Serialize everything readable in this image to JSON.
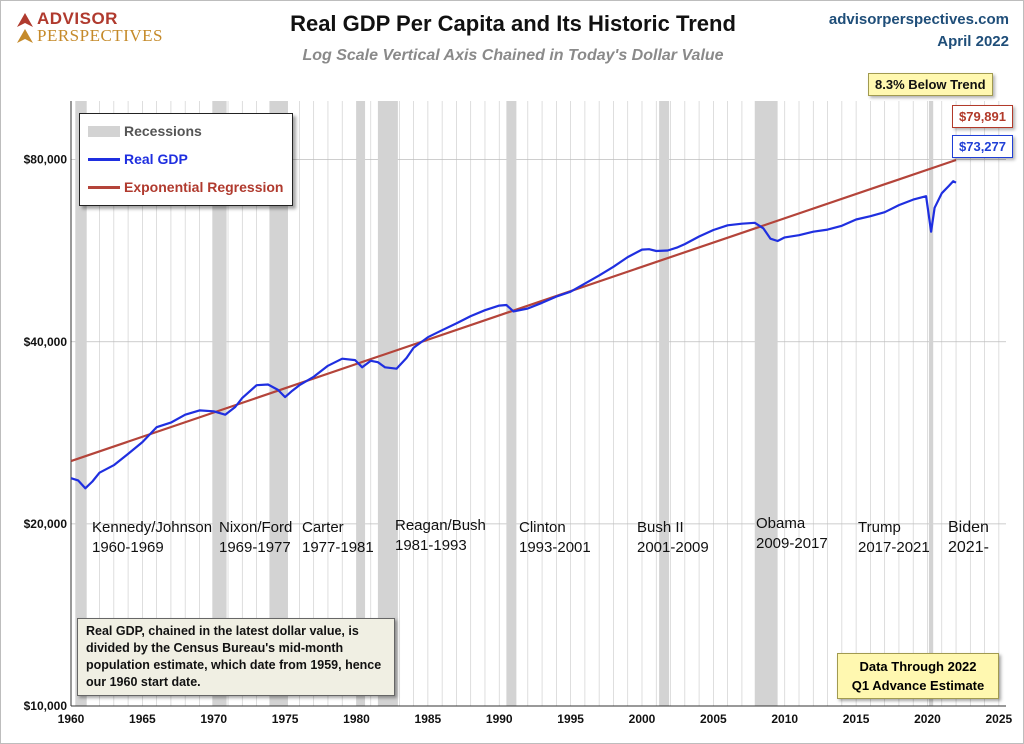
{
  "header": {
    "logo_line1": "ADVISOR",
    "logo_line2": "PERSPECTIVES",
    "site": "advisorperspectives.com",
    "date": "April 2022",
    "title": "Real GDP Per Capita and Its Historic Trend",
    "subtitle": "Log Scale Vertical Axis Chained in Today's Dollar Value"
  },
  "legend": {
    "recessions": "Recessions",
    "real_gdp": "Real GDP",
    "regression": "Exponential Regression"
  },
  "callouts": {
    "below_trend": "8.3% Below Trend",
    "trend_value": "$79,891",
    "gdp_value": "$73,277"
  },
  "note": "Real GDP, chained in the latest dollar value, is divided by the Census Bureau's mid-month population estimate, which date from 1959, hence our 1960 start date.",
  "data_through": {
    "line1": "Data Through 2022",
    "line2": "Q1 Advance Estimate"
  },
  "presidents": [
    {
      "name": "Kennedy/Johnson",
      "years": "1960-1969"
    },
    {
      "name": "Nixon/Ford",
      "years": "1969-1977"
    },
    {
      "name": "Carter",
      "years": "1977-1981"
    },
    {
      "name": "Reagan/Bush",
      "years": "1981-1993"
    },
    {
      "name": "Clinton",
      "years": "1993-2001"
    },
    {
      "name": "Bush II",
      "years": "2001-2009"
    },
    {
      "name": "Obama",
      "years": "2009-2017"
    },
    {
      "name": "Trump",
      "years": "2017-2021"
    },
    {
      "name": "Biden",
      "years": "2021-"
    }
  ],
  "colors": {
    "gdp": "#1f2fe0",
    "trend": "#b4443a",
    "recession": "#d3d3d3",
    "grid": "#d0d0d0"
  },
  "chart_data": {
    "type": "line",
    "y_scale": "log",
    "ylim": [
      10000,
      100000
    ],
    "xlim": [
      1960,
      2025.5
    ],
    "y_ticks": [
      {
        "value": 10000,
        "label": "$10,000"
      },
      {
        "value": 20000,
        "label": "$20,000"
      },
      {
        "value": 40000,
        "label": "$40,000"
      },
      {
        "value": 80000,
        "label": "$80,000"
      }
    ],
    "x_ticks": [
      1960,
      1965,
      1970,
      1975,
      1980,
      1985,
      1990,
      1995,
      2000,
      2005,
      2010,
      2015,
      2020,
      2025
    ],
    "recessions": [
      [
        1960.3,
        1961.1
      ],
      [
        1969.9,
        1970.9
      ],
      [
        1973.9,
        1975.2
      ],
      [
        1980.0,
        1980.6
      ],
      [
        1981.5,
        1982.9
      ],
      [
        1990.5,
        1991.2
      ],
      [
        2001.2,
        2001.9
      ],
      [
        2007.9,
        2009.5
      ],
      [
        2020.1,
        2020.4
      ]
    ],
    "series": [
      {
        "name": "Real GDP",
        "x": [
          1960.0,
          1960.5,
          1961.0,
          1961.5,
          1962.0,
          1963.0,
          1964.0,
          1965.0,
          1966.0,
          1967.0,
          1968.0,
          1969.0,
          1970.0,
          1970.8,
          1971.5,
          1972.0,
          1973.0,
          1973.8,
          1974.5,
          1975.0,
          1975.5,
          1976.0,
          1977.0,
          1978.0,
          1979.0,
          1979.9,
          1980.4,
          1981.0,
          1981.5,
          1982.0,
          1982.8,
          1983.5,
          1984.0,
          1985.0,
          1986.0,
          1987.0,
          1988.0,
          1989.0,
          1990.0,
          1990.5,
          1991.0,
          1992.0,
          1993.0,
          1994.0,
          1995.0,
          1996.0,
          1997.0,
          1998.0,
          1999.0,
          2000.0,
          2000.5,
          2001.0,
          2001.8,
          2002.5,
          2003.0,
          2004.0,
          2005.0,
          2006.0,
          2007.0,
          2007.9,
          2008.5,
          2009.0,
          2009.5,
          2010.0,
          2011.0,
          2012.0,
          2013.0,
          2014.0,
          2015.0,
          2016.0,
          2017.0,
          2018.0,
          2019.0,
          2019.9,
          2020.25,
          2020.5,
          2021.0,
          2021.5,
          2021.8,
          2022.0
        ],
        "values": [
          23800,
          23600,
          22900,
          23500,
          24300,
          25000,
          26100,
          27300,
          28900,
          29400,
          30300,
          30800,
          30700,
          30300,
          31200,
          32300,
          33900,
          34000,
          33300,
          32400,
          33200,
          33900,
          35000,
          36500,
          37500,
          37300,
          36300,
          37200,
          37000,
          36300,
          36100,
          37600,
          39100,
          40700,
          41800,
          42900,
          44100,
          45100,
          45900,
          46000,
          44900,
          45400,
          46400,
          47500,
          48400,
          49900,
          51500,
          53200,
          55200,
          56800,
          56900,
          56500,
          56600,
          57300,
          58000,
          59700,
          61200,
          62300,
          62700,
          62900,
          61600,
          59200,
          58700,
          59500,
          60000,
          60800,
          61300,
          62200,
          63700,
          64500,
          65500,
          67300,
          68700,
          69600,
          60800,
          66600,
          70400,
          72400,
          73700,
          73277
        ]
      },
      {
        "name": "Exponential Regression",
        "x": [
          1960.0,
          2022.0
        ],
        "values": [
          25400,
          79891
        ]
      }
    ]
  }
}
